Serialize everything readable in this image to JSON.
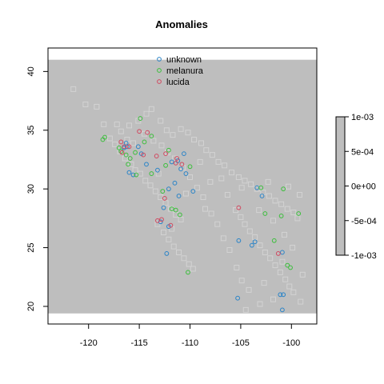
{
  "chart_data": {
    "type": "scatter",
    "title": "Anomalies",
    "xlabel": "",
    "ylabel": "",
    "xlim": [
      -124,
      -97.5
    ],
    "ylim": [
      18.5,
      42
    ],
    "xticks": [
      -120,
      -115,
      -110,
      -105,
      -100
    ],
    "yticks": [
      20,
      25,
      30,
      35,
      40
    ],
    "raster": {
      "extent": {
        "x": [
          -124,
          -97.5
        ],
        "y": [
          19.4,
          41.0
        ]
      },
      "fill_color": "#bebebe",
      "colorbar": {
        "ticks": [
          "1e-03",
          "5e-04",
          "0e+00",
          "-5e-04",
          "-1e-03"
        ],
        "range": [
          -0.001,
          0.001
        ],
        "color": "#bebebe"
      }
    },
    "background_points": {
      "marker": "square",
      "color": "#d3d3d3",
      "points": [
        [
          -121.5,
          38.5
        ],
        [
          -120.3,
          37.2
        ],
        [
          -119.2,
          37.0
        ],
        [
          -118.5,
          35.5
        ],
        [
          -117.2,
          35.5
        ],
        [
          -116.8,
          34.9
        ],
        [
          -116.0,
          35.4
        ],
        [
          -115.1,
          35.8
        ],
        [
          -114.3,
          36.4
        ],
        [
          -113.8,
          36.8
        ],
        [
          -112.9,
          35.8
        ],
        [
          -112.3,
          35.0
        ],
        [
          -111.7,
          34.6
        ],
        [
          -110.9,
          35.1
        ],
        [
          -110.2,
          34.8
        ],
        [
          -109.6,
          34.2
        ],
        [
          -108.9,
          33.9
        ],
        [
          -108.4,
          33.3
        ],
        [
          -107.8,
          32.9
        ],
        [
          -107.2,
          32.3
        ],
        [
          -106.6,
          32.0
        ],
        [
          -105.9,
          31.4
        ],
        [
          -105.2,
          31.0
        ],
        [
          -104.6,
          30.7
        ],
        [
          -104.0,
          30.4
        ],
        [
          -103.4,
          30.0
        ],
        [
          -102.8,
          29.7
        ],
        [
          -102.2,
          29.4
        ],
        [
          -101.6,
          29.0
        ],
        [
          -101.0,
          28.7
        ],
        [
          -100.4,
          28.3
        ],
        [
          -99.8,
          28.0
        ],
        [
          -99.4,
          27.5
        ],
        [
          -117.9,
          34.3
        ],
        [
          -117.4,
          33.8
        ],
        [
          -116.9,
          33.2
        ],
        [
          -116.4,
          32.6
        ],
        [
          -115.8,
          32.1
        ],
        [
          -115.4,
          31.6
        ],
        [
          -114.9,
          31.3
        ],
        [
          -114.4,
          30.7
        ],
        [
          -113.9,
          30.3
        ],
        [
          -113.4,
          29.8
        ],
        [
          -112.9,
          29.3
        ],
        [
          -112.4,
          28.8
        ],
        [
          -111.9,
          28.3
        ],
        [
          -111.4,
          27.8
        ],
        [
          -110.9,
          27.4
        ],
        [
          -112.6,
          26.3
        ],
        [
          -112.1,
          25.7
        ],
        [
          -111.6,
          25.1
        ],
        [
          -111.1,
          24.6
        ],
        [
          -110.6,
          24.1
        ],
        [
          -110.1,
          23.6
        ],
        [
          -109.7,
          23.2
        ],
        [
          -105.5,
          28.2
        ],
        [
          -105.0,
          27.6
        ],
        [
          -104.6,
          27.0
        ],
        [
          -104.1,
          26.4
        ],
        [
          -103.6,
          25.9
        ],
        [
          -103.1,
          25.2
        ],
        [
          -102.6,
          24.6
        ],
        [
          -102.1,
          24.1
        ],
        [
          -101.6,
          23.5
        ],
        [
          -101.1,
          22.9
        ],
        [
          -100.6,
          22.3
        ],
        [
          -100.2,
          21.7
        ],
        [
          -99.8,
          21.2
        ],
        [
          -101.8,
          20.6
        ],
        [
          -103.1,
          20.2
        ],
        [
          -104.2,
          21.4
        ],
        [
          -104.9,
          22.2
        ],
        [
          -105.4,
          23.3
        ],
        [
          -106.1,
          24.8
        ],
        [
          -106.7,
          25.8
        ],
        [
          -107.3,
          27.0
        ],
        [
          -107.9,
          27.9
        ],
        [
          -108.7,
          29.3
        ],
        [
          -109.3,
          30.1
        ],
        [
          -110.0,
          31.0
        ],
        [
          -110.7,
          31.8
        ],
        [
          -111.5,
          32.6
        ],
        [
          -112.2,
          33.1
        ],
        [
          -112.8,
          33.7
        ],
        [
          -113.6,
          34.1
        ],
        [
          -114.5,
          34.7
        ],
        [
          -115.6,
          33.9
        ],
        [
          -116.2,
          34.2
        ],
        [
          -113.1,
          31.3
        ],
        [
          -108.0,
          30.6
        ],
        [
          -106.3,
          29.5
        ],
        [
          -103.2,
          28.2
        ],
        [
          -101.8,
          27.3
        ],
        [
          -100.7,
          26.1
        ],
        [
          -99.9,
          25.0
        ],
        [
          -100.9,
          23.8
        ],
        [
          -102.7,
          22.0
        ],
        [
          -98.9,
          22.7
        ],
        [
          -99.1,
          20.4
        ],
        [
          -104.5,
          19.7
        ],
        [
          -113.2,
          27.0
        ],
        [
          -111.8,
          26.6
        ],
        [
          -108.5,
          28.3
        ],
        [
          -106.9,
          30.9
        ],
        [
          -104.9,
          30.1
        ],
        [
          -102.3,
          30.6
        ],
        [
          -100.3,
          30.2
        ],
        [
          -99.2,
          29.5
        ],
        [
          -110.4,
          29.6
        ],
        [
          -109.0,
          32.3
        ]
      ]
    },
    "series": [
      {
        "name": "unknown",
        "color": "#2a84c8",
        "points": [
          [
            -116.3,
            33.9
          ],
          [
            -116.5,
            33.5
          ],
          [
            -115.1,
            33.6
          ],
          [
            -114.8,
            33.0
          ],
          [
            -116.0,
            31.4
          ],
          [
            -115.6,
            31.2
          ],
          [
            -114.3,
            32.1
          ],
          [
            -113.2,
            31.6
          ],
          [
            -111.8,
            32.3
          ],
          [
            -111.2,
            32.4
          ],
          [
            -110.6,
            33.0
          ],
          [
            -110.9,
            31.7
          ],
          [
            -110.4,
            31.3
          ],
          [
            -111.5,
            30.5
          ],
          [
            -112.1,
            30.0
          ],
          [
            -111.1,
            29.4
          ],
          [
            -109.7,
            29.8
          ],
          [
            -112.6,
            28.4
          ],
          [
            -112.9,
            27.2
          ],
          [
            -112.1,
            26.8
          ],
          [
            -112.3,
            24.5
          ],
          [
            -105.2,
            25.6
          ],
          [
            -103.9,
            25.2
          ],
          [
            -103.6,
            25.5
          ],
          [
            -102.9,
            29.4
          ],
          [
            -103.4,
            30.1
          ],
          [
            -100.9,
            24.6
          ],
          [
            -101.1,
            21.0
          ],
          [
            -100.8,
            21.0
          ],
          [
            -100.9,
            19.7
          ],
          [
            -105.3,
            20.7
          ],
          [
            -116.2,
            33.6
          ]
        ]
      },
      {
        "name": "melanura",
        "color": "#3cbf3c",
        "points": [
          [
            -118.6,
            34.2
          ],
          [
            -118.4,
            34.4
          ],
          [
            -117.0,
            33.5
          ],
          [
            -116.8,
            33.2
          ],
          [
            -116.3,
            32.9
          ],
          [
            -115.9,
            32.6
          ],
          [
            -115.4,
            33.1
          ],
          [
            -114.9,
            36.0
          ],
          [
            -114.5,
            34.0
          ],
          [
            -113.8,
            34.5
          ],
          [
            -112.1,
            33.3
          ],
          [
            -112.4,
            32.0
          ],
          [
            -116.1,
            32.1
          ],
          [
            -115.3,
            31.2
          ],
          [
            -113.8,
            31.3
          ],
          [
            -112.7,
            29.8
          ],
          [
            -111.8,
            28.3
          ],
          [
            -111.0,
            27.8
          ],
          [
            -110.2,
            22.9
          ],
          [
            -103.0,
            30.1
          ],
          [
            -102.6,
            27.9
          ],
          [
            -101.0,
            27.7
          ],
          [
            -100.8,
            30.0
          ],
          [
            -99.3,
            27.9
          ],
          [
            -100.4,
            23.5
          ],
          [
            -100.1,
            23.3
          ],
          [
            -101.7,
            25.6
          ],
          [
            -110.0,
            31.9
          ],
          [
            -111.4,
            28.2
          ]
        ]
      },
      {
        "name": "lucida",
        "color": "#d1485f",
        "points": [
          [
            -116.8,
            34.0
          ],
          [
            -116.5,
            33.6
          ],
          [
            -116.7,
            33.1
          ],
          [
            -115.0,
            34.9
          ],
          [
            -114.6,
            32.9
          ],
          [
            -113.3,
            32.8
          ],
          [
            -112.4,
            33.0
          ],
          [
            -111.4,
            32.2
          ],
          [
            -111.3,
            32.6
          ],
          [
            -110.8,
            32.1
          ],
          [
            -112.5,
            29.2
          ],
          [
            -113.2,
            27.3
          ],
          [
            -111.9,
            26.9
          ],
          [
            -105.2,
            28.4
          ],
          [
            -101.3,
            24.5
          ],
          [
            -116.0,
            33.6
          ],
          [
            -112.8,
            27.4
          ],
          [
            -114.2,
            34.8
          ]
        ]
      }
    ],
    "legend": {
      "placement": "top-center",
      "entries": [
        "unknown",
        "melanura",
        "lucida"
      ]
    }
  }
}
